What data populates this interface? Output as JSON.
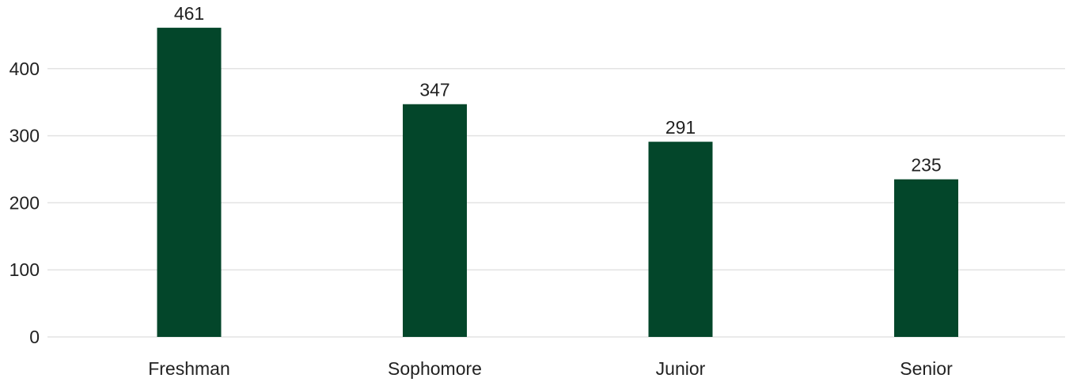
{
  "chart_data": {
    "type": "bar",
    "categories": [
      "Freshman",
      "Sophomore",
      "Junior",
      "Senior"
    ],
    "values": [
      461,
      347,
      291,
      235
    ],
    "data_labels": [
      "461",
      "347",
      "291",
      "235"
    ],
    "title": "",
    "xlabel": "",
    "ylabel": "",
    "ylim": [
      0,
      461
    ],
    "yticks": [
      0,
      100,
      200,
      300,
      400
    ],
    "ytick_labels": [
      "0",
      "100",
      "200",
      "300",
      "400"
    ],
    "grid": true,
    "legend": "none",
    "bar_color": "#03462a",
    "grid_color": "#e3e3e3",
    "text_color": "#222222"
  }
}
